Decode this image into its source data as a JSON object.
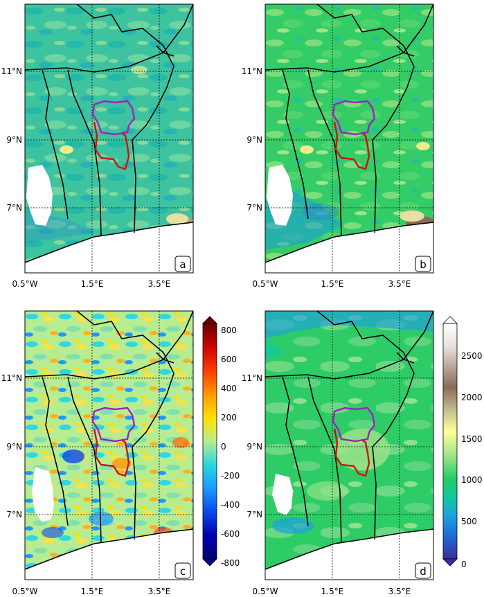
{
  "figure": {
    "panels": [
      {
        "letter": "a",
        "palette": "teal",
        "colorbar": null
      },
      {
        "letter": "b",
        "palette": "green",
        "colorbar": null
      },
      {
        "letter": "c",
        "palette": "diverging",
        "colorbar": "diff"
      },
      {
        "letter": "d",
        "palette": "green-smooth",
        "colorbar": "abs"
      }
    ],
    "x_ticks": [
      "0.5°W",
      "1.5°E",
      "3.5°E"
    ],
    "y_ticks": [
      "11°N",
      "9°N",
      "7°N"
    ]
  },
  "colorbar_diff": {
    "ticks": [
      "800",
      "600",
      "400",
      "200",
      "0",
      "-200",
      "-400",
      "-600",
      "-800"
    ],
    "colors": [
      "#6b0000",
      "#c40000",
      "#ff3a00",
      "#ff9a00",
      "#ffe000",
      "#c8f060",
      "#7fe0b0",
      "#28d8e0",
      "#1a9aff",
      "#0a4ae8",
      "#0000b0",
      "#00007a"
    ]
  },
  "colorbar_abs": {
    "ticks": [
      "2500",
      "2000",
      "1500",
      "1000",
      "500",
      "0"
    ],
    "colors": [
      "#ffffff",
      "#d9d0cc",
      "#8a6a5a",
      "#c8c890",
      "#ffff99",
      "#9ae08a",
      "#22cc66",
      "#10c8a0",
      "#1ea0e0",
      "#2060d0",
      "#3a2e9a"
    ]
  }
}
